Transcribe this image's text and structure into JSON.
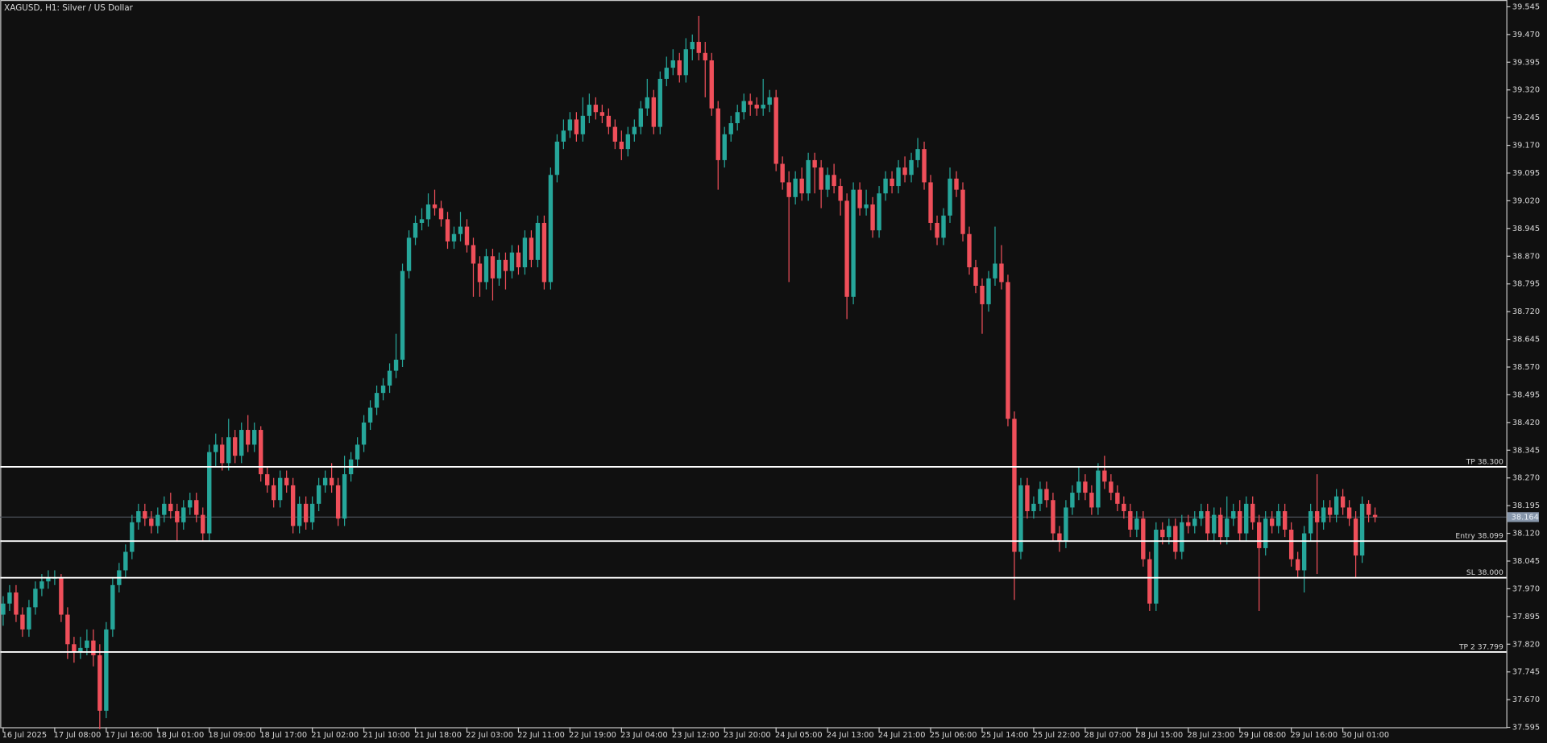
{
  "chart_data": {
    "type": "candlestick",
    "title": "XAGUSD, H1:  Silver / US Dollar",
    "up_color": "#26a69a",
    "down_color": "#ef4f5a",
    "level_color": "#ffffff",
    "current_color": "#8796aa",
    "ylim": [
      37.59,
      39.558
    ],
    "yticks": [
      37.595,
      {
        "value": 37.67,
        "label": "37.670"
      },
      37.745,
      {
        "value": 37.82,
        "label": "37.820"
      },
      37.895,
      {
        "value": 37.97,
        "label": "37.970"
      },
      38.045,
      {
        "value": 38.12,
        "label": "38.120"
      },
      38.195,
      {
        "value": 38.27,
        "label": "38.270"
      },
      38.345,
      {
        "value": 38.42,
        "label": "38.420"
      },
      38.495,
      {
        "value": 38.57,
        "label": "38.570"
      },
      38.645,
      {
        "value": 38.72,
        "label": "38.720"
      },
      38.795,
      {
        "value": 38.87,
        "label": "38.870"
      },
      38.945,
      {
        "value": 39.02,
        "label": "39.020"
      },
      39.095,
      {
        "value": 39.17,
        "label": "39.170"
      },
      39.245,
      {
        "value": 39.32,
        "label": "39.320"
      },
      39.395,
      {
        "value": 39.47,
        "label": "39.470"
      },
      39.545
    ],
    "levels": [
      {
        "label": "TP 38.300",
        "value": 38.3
      },
      {
        "label": "Entry 38.099",
        "value": 38.099
      },
      {
        "label": "SL 38.000",
        "value": 38.0
      },
      {
        "label": "TP 2 37.799",
        "value": 37.799
      }
    ],
    "current_price": {
      "value": 38.164,
      "label": "38.164"
    },
    "categories": [
      "16 Jul 2025",
      null,
      null,
      null,
      null,
      null,
      null,
      null,
      "17 Jul 08:00",
      null,
      null,
      null,
      null,
      null,
      null,
      null,
      "17 Jul 16:00",
      null,
      null,
      null,
      null,
      null,
      null,
      null,
      "18 Jul 01:00",
      null,
      null,
      null,
      null,
      null,
      null,
      null,
      "18 Jul 09:00",
      null,
      null,
      null,
      null,
      null,
      null,
      null,
      "18 Jul 17:00",
      null,
      null,
      null,
      null,
      null,
      null,
      null,
      "21 Jul 02:00",
      null,
      null,
      null,
      null,
      null,
      null,
      null,
      "21 Jul 10:00",
      null,
      null,
      null,
      null,
      null,
      null,
      null,
      "21 Jul 18:00",
      null,
      null,
      null,
      null,
      null,
      null,
      null,
      "22 Jul 03:00",
      null,
      null,
      null,
      null,
      null,
      null,
      null,
      "22 Jul 11:00",
      null,
      null,
      null,
      null,
      null,
      null,
      null,
      "22 Jul 19:00",
      null,
      null,
      null,
      null,
      null,
      null,
      null,
      "23 Jul 04:00",
      null,
      null,
      null,
      null,
      null,
      null,
      null,
      "23 Jul 12:00",
      null,
      null,
      null,
      null,
      null,
      null,
      null,
      "23 Jul 20:00",
      null,
      null,
      null,
      null,
      null,
      null,
      null,
      "24 Jul 05:00",
      null,
      null,
      null,
      null,
      null,
      null,
      null,
      "24 Jul 13:00",
      null,
      null,
      null,
      null,
      null,
      null,
      null,
      "24 Jul 21:00",
      null,
      null,
      null,
      null,
      null,
      null,
      null,
      "25 Jul 06:00",
      null,
      null,
      null,
      null,
      null,
      null,
      null,
      "25 Jul 14:00",
      null,
      null,
      null,
      null,
      null,
      null,
      null,
      "25 Jul 22:00",
      null,
      null,
      null,
      null,
      null,
      null,
      null,
      "28 Jul 07:00",
      null,
      null,
      null,
      null,
      null,
      null,
      null,
      "28 Jul 15:00",
      null,
      null,
      null,
      null,
      null,
      null,
      null,
      "28 Jul 23:00",
      null,
      null,
      null,
      null,
      null,
      null,
      null,
      "29 Jul 08:00",
      null,
      null,
      null,
      null,
      null,
      null,
      null,
      "29 Jul 16:00",
      null,
      null,
      null,
      null,
      null,
      null,
      null,
      "30 Jul 01:00",
      null,
      null,
      null,
      null,
      null
    ],
    "open": [
      37.9,
      37.93,
      37.96,
      37.9,
      37.86,
      37.92,
      37.97,
      37.99,
      38.0,
      38.0,
      37.9,
      37.82,
      37.8,
      37.81,
      37.83,
      37.79,
      37.64,
      37.86,
      37.98,
      38.02,
      38.07,
      38.15,
      38.18,
      38.16,
      38.14,
      38.17,
      38.2,
      38.18,
      38.15,
      38.19,
      38.21,
      38.17,
      38.12,
      38.34,
      38.36,
      38.31,
      38.38,
      38.33,
      38.4,
      38.36,
      38.4,
      38.28,
      38.25,
      38.21,
      38.27,
      38.25,
      38.14,
      38.2,
      38.15,
      38.2,
      38.25,
      38.27,
      38.25,
      38.16,
      38.28,
      38.32,
      38.36,
      38.42,
      38.46,
      38.5,
      38.52,
      38.56,
      38.59,
      38.83,
      38.92,
      38.96,
      38.97,
      39.01,
      39.0,
      38.97,
      38.91,
      38.93,
      38.95,
      38.9,
      38.85,
      38.8,
      38.87,
      38.81,
      38.86,
      38.83,
      38.88,
      38.84,
      38.92,
      38.86,
      38.96,
      38.8,
      39.09,
      39.18,
      39.21,
      39.24,
      39.2,
      39.25,
      39.28,
      39.26,
      39.25,
      39.22,
      39.18,
      39.16,
      39.2,
      39.22,
      39.27,
      39.3,
      39.22,
      39.35,
      39.38,
      39.4,
      39.36,
      39.43,
      39.45,
      39.42,
      39.4,
      39.27,
      39.13,
      39.2,
      39.23,
      39.26,
      39.29,
      39.28,
      39.27,
      39.28,
      39.3,
      39.12,
      39.07,
      39.03,
      39.08,
      39.04,
      39.13,
      39.11,
      39.05,
      39.09,
      39.06,
      39.02,
      38.76,
      39.05,
      39.0,
      39.01,
      38.94,
      39.04,
      39.08,
      39.06,
      39.11,
      39.09,
      39.13,
      39.16,
      39.07,
      38.96,
      38.92,
      38.98,
      39.08,
      39.05,
      38.93,
      38.84,
      38.79,
      38.74,
      38.81,
      38.85,
      38.8,
      38.43,
      38.07,
      38.25,
      38.18,
      38.2,
      38.24,
      38.21,
      38.12,
      38.1,
      38.19,
      38.23,
      38.26,
      38.23,
      38.19,
      38.29,
      38.26,
      38.23,
      38.2,
      38.18,
      38.13,
      38.16,
      38.05,
      37.93,
      38.13,
      38.11,
      38.14,
      38.07,
      38.15,
      38.14,
      38.16,
      38.18,
      38.12,
      38.17,
      38.11,
      38.16,
      38.18,
      38.12,
      38.2,
      38.15,
      38.08,
      38.16,
      38.14,
      38.18,
      38.13,
      38.05,
      38.02,
      38.12,
      38.18,
      38.15,
      38.19,
      38.17,
      38.22,
      38.19,
      38.16,
      38.06,
      38.2,
      38.17
    ],
    "high": [
      37.95,
      37.98,
      37.98,
      37.92,
      37.94,
      37.99,
      38.01,
      38.02,
      38.02,
      38.01,
      37.92,
      37.84,
      37.84,
      37.86,
      37.86,
      37.82,
      37.88,
      38.0,
      38.04,
      38.09,
      38.17,
      38.2,
      38.2,
      38.18,
      38.19,
      38.22,
      38.23,
      38.2,
      38.21,
      38.23,
      38.23,
      38.19,
      38.36,
      38.39,
      38.38,
      38.43,
      38.4,
      38.42,
      38.44,
      38.42,
      38.41,
      38.3,
      38.27,
      38.29,
      38.29,
      38.27,
      38.22,
      38.22,
      38.22,
      38.27,
      38.29,
      38.31,
      38.27,
      38.33,
      38.34,
      38.38,
      38.44,
      38.48,
      38.52,
      38.54,
      38.58,
      38.66,
      38.85,
      38.94,
      38.98,
      39.0,
      39.04,
      39.05,
      39.02,
      38.99,
      38.95,
      38.99,
      38.97,
      38.92,
      38.87,
      38.89,
      38.89,
      38.88,
      38.88,
      38.9,
      38.9,
      38.94,
      38.94,
      38.98,
      38.98,
      39.11,
      39.2,
      39.24,
      39.26,
      39.26,
      39.3,
      39.31,
      39.3,
      39.28,
      39.27,
      39.24,
      39.21,
      39.22,
      39.24,
      39.29,
      39.35,
      39.32,
      39.37,
      39.41,
      39.43,
      39.42,
      39.46,
      39.47,
      39.52,
      39.45,
      39.42,
      39.29,
      39.22,
      39.25,
      39.28,
      39.31,
      39.31,
      39.3,
      39.35,
      39.32,
      39.32,
      39.14,
      39.1,
      39.1,
      39.11,
      39.15,
      39.15,
      39.13,
      39.11,
      39.12,
      39.08,
      39.04,
      39.07,
      39.07,
      39.05,
      39.03,
      39.06,
      39.1,
      39.1,
      39.13,
      39.14,
      39.15,
      39.19,
      39.18,
      39.09,
      38.98,
      39.0,
      39.11,
      39.1,
      39.07,
      38.95,
      38.86,
      38.81,
      38.83,
      38.95,
      38.9,
      38.82,
      38.45,
      38.27,
      38.27,
      38.22,
      38.26,
      38.26,
      38.23,
      38.14,
      38.21,
      38.25,
      38.3,
      38.28,
      38.25,
      38.31,
      38.33,
      38.28,
      38.25,
      38.22,
      38.2,
      38.18,
      38.18,
      38.07,
      38.15,
      38.15,
      38.16,
      38.16,
      38.17,
      38.17,
      38.18,
      38.2,
      38.2,
      38.19,
      38.19,
      38.22,
      38.2,
      38.21,
      38.22,
      38.22,
      38.17,
      38.18,
      38.18,
      38.2,
      38.2,
      38.15,
      38.07,
      38.14,
      38.2,
      38.28,
      38.21,
      38.21,
      38.24,
      38.24,
      38.21,
      38.18,
      38.22,
      38.21,
      38.19
    ],
    "low": [
      37.87,
      37.91,
      37.88,
      37.84,
      37.84,
      37.9,
      37.95,
      37.97,
      37.98,
      37.88,
      37.78,
      37.77,
      37.78,
      37.79,
      37.76,
      37.59,
      37.62,
      37.84,
      37.96,
      38.0,
      38.05,
      38.13,
      38.14,
      38.12,
      38.12,
      38.15,
      38.16,
      38.1,
      38.13,
      38.17,
      38.15,
      38.1,
      38.1,
      38.3,
      38.29,
      38.29,
      38.31,
      38.31,
      38.34,
      38.34,
      38.26,
      38.23,
      38.19,
      38.19,
      38.23,
      38.12,
      38.12,
      38.13,
      38.13,
      38.18,
      38.23,
      38.23,
      38.14,
      38.14,
      38.26,
      38.3,
      38.34,
      38.4,
      38.44,
      38.48,
      38.5,
      38.54,
      38.57,
      38.81,
      38.9,
      38.94,
      38.95,
      38.98,
      38.95,
      38.89,
      38.89,
      38.91,
      38.88,
      38.76,
      38.76,
      38.78,
      38.75,
      38.79,
      38.78,
      38.81,
      38.82,
      38.82,
      38.84,
      38.84,
      38.78,
      38.78,
      39.07,
      39.16,
      39.19,
      39.18,
      39.18,
      39.23,
      39.24,
      39.23,
      39.2,
      39.16,
      39.13,
      39.14,
      39.18,
      39.2,
      39.25,
      39.2,
      39.2,
      39.33,
      39.36,
      39.34,
      39.34,
      39.4,
      39.4,
      39.3,
      39.25,
      39.05,
      39.11,
      39.18,
      39.21,
      39.24,
      39.25,
      39.25,
      39.25,
      39.26,
      39.1,
      39.05,
      38.8,
      39.01,
      39.02,
      39.02,
      39.04,
      39.0,
      39.03,
      39.04,
      38.98,
      38.7,
      38.74,
      38.98,
      38.98,
      38.92,
      38.92,
      39.02,
      39.04,
      39.04,
      39.07,
      39.07,
      39.11,
      39.05,
      38.94,
      38.9,
      38.9,
      38.96,
      39.03,
      38.91,
      38.82,
      38.77,
      38.66,
      38.72,
      38.79,
      38.78,
      38.41,
      37.94,
      38.05,
      38.16,
      38.16,
      38.18,
      38.19,
      38.1,
      38.07,
      38.08,
      38.17,
      38.21,
      38.21,
      38.17,
      38.17,
      38.24,
      38.21,
      38.18,
      38.16,
      38.11,
      38.11,
      38.03,
      37.91,
      37.91,
      38.09,
      38.09,
      38.05,
      38.05,
      38.12,
      38.12,
      38.14,
      38.1,
      38.1,
      38.09,
      38.09,
      38.14,
      38.1,
      38.1,
      38.13,
      37.91,
      38.06,
      38.12,
      38.12,
      38.11,
      38.03,
      38.0,
      37.96,
      38.1,
      38.01,
      38.13,
      38.15,
      38.15,
      38.17,
      38.14,
      38.0,
      38.04,
      38.15,
      38.15
    ],
    "close": [
      37.93,
      37.96,
      37.9,
      37.86,
      37.92,
      37.97,
      37.99,
      38.0,
      38.0,
      37.9,
      37.82,
      37.8,
      37.81,
      37.83,
      37.79,
      37.64,
      37.86,
      37.98,
      38.02,
      38.07,
      38.15,
      38.18,
      38.16,
      38.14,
      38.17,
      38.2,
      38.18,
      38.15,
      38.19,
      38.21,
      38.17,
      38.12,
      38.34,
      38.36,
      38.31,
      38.38,
      38.33,
      38.4,
      38.36,
      38.4,
      38.28,
      38.25,
      38.21,
      38.27,
      38.25,
      38.14,
      38.2,
      38.15,
      38.2,
      38.25,
      38.27,
      38.25,
      38.16,
      38.28,
      38.32,
      38.36,
      38.42,
      38.46,
      38.5,
      38.52,
      38.56,
      38.59,
      38.83,
      38.92,
      38.96,
      38.97,
      39.01,
      39.0,
      38.97,
      38.91,
      38.93,
      38.95,
      38.9,
      38.85,
      38.8,
      38.87,
      38.81,
      38.86,
      38.83,
      38.88,
      38.84,
      38.92,
      38.86,
      38.96,
      38.8,
      39.09,
      39.18,
      39.21,
      39.24,
      39.2,
      39.25,
      39.28,
      39.26,
      39.25,
      39.22,
      39.18,
      39.16,
      39.2,
      39.22,
      39.27,
      39.3,
      39.22,
      39.35,
      39.38,
      39.4,
      39.36,
      39.43,
      39.45,
      39.42,
      39.4,
      39.27,
      39.13,
      39.2,
      39.23,
      39.26,
      39.29,
      39.28,
      39.27,
      39.28,
      39.3,
      39.12,
      39.07,
      39.03,
      39.08,
      39.04,
      39.13,
      39.11,
      39.05,
      39.09,
      39.06,
      39.02,
      38.76,
      39.05,
      39.0,
      39.01,
      38.94,
      39.04,
      39.08,
      39.06,
      39.11,
      39.09,
      39.13,
      39.16,
      39.07,
      38.96,
      38.92,
      38.98,
      39.08,
      39.05,
      38.93,
      38.84,
      38.79,
      38.74,
      38.81,
      38.85,
      38.8,
      38.43,
      38.07,
      38.25,
      38.18,
      38.2,
      38.24,
      38.21,
      38.12,
      38.1,
      38.19,
      38.23,
      38.26,
      38.23,
      38.19,
      38.29,
      38.26,
      38.23,
      38.2,
      38.18,
      38.13,
      38.16,
      38.05,
      37.93,
      38.13,
      38.11,
      38.14,
      38.07,
      38.15,
      38.14,
      38.16,
      38.18,
      38.12,
      38.17,
      38.11,
      38.16,
      38.18,
      38.12,
      38.2,
      38.15,
      38.08,
      38.16,
      38.14,
      38.18,
      38.13,
      38.05,
      38.02,
      38.12,
      38.18,
      38.15,
      38.19,
      38.17,
      38.22,
      38.19,
      38.16,
      38.06,
      38.2,
      38.17,
      38.164
    ]
  }
}
